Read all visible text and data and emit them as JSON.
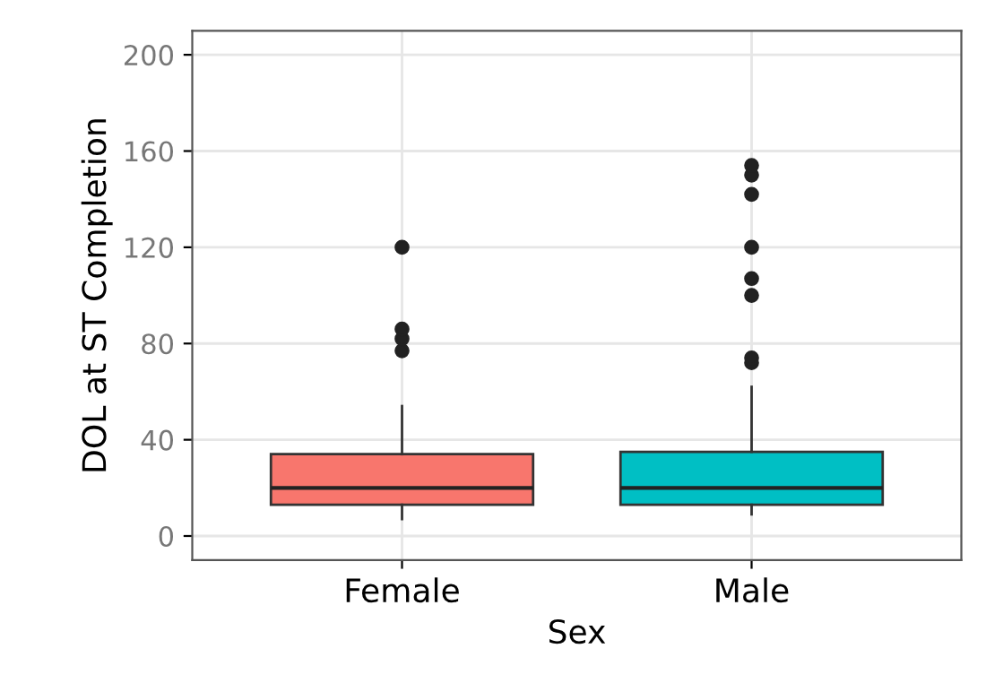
{
  "chart_data": {
    "type": "box",
    "xlabel": "Sex",
    "ylabel": "DOL at ST Completion",
    "categories": [
      "Female",
      "Male"
    ],
    "colors": [
      "#f8766d",
      "#00bfc4"
    ],
    "boxes": [
      {
        "low": 7,
        "q1": 13,
        "median": 20,
        "q3": 34,
        "high": 54,
        "outliers": [
          77,
          82,
          86,
          120
        ]
      },
      {
        "low": 9,
        "q1": 13,
        "median": 20,
        "q3": 35,
        "high": 62,
        "outliers": [
          72,
          74,
          100,
          107,
          120,
          142,
          150,
          154
        ]
      }
    ],
    "ylim": [
      -10,
      210
    ],
    "yticks": [
      0,
      40,
      80,
      120,
      160,
      200
    ],
    "grid": true
  }
}
